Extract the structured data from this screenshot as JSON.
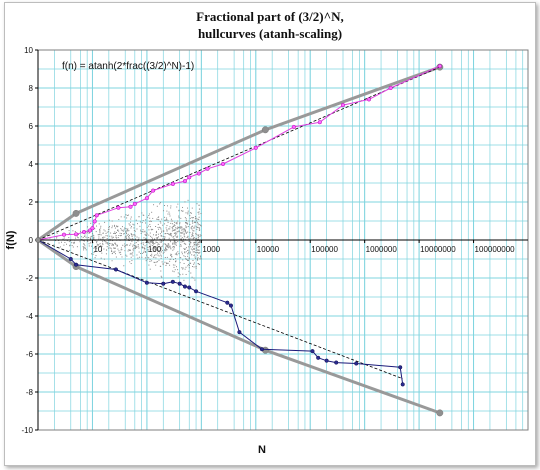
{
  "chart_data": {
    "type": "line",
    "title_line1": "Fractional part of (3/2)^N,",
    "title_line2": "hullcurves (atanh-scaling)",
    "xlabel": "N",
    "ylabel": "f(N)",
    "annotation": "f(n) = atanh(2*frac((3/2)^N)-1)",
    "x_scale": "log",
    "xlim": [
      1,
      1000000000
    ],
    "ylim": [
      -10,
      10
    ],
    "y_ticks": [
      -10,
      -8,
      -6,
      -4,
      -2,
      0,
      2,
      4,
      6,
      8,
      10
    ],
    "x_tick_labels": [
      "10",
      "100",
      "1000",
      "10000",
      "100000",
      "1000000",
      "10000000",
      "100000000"
    ],
    "grid": true,
    "colors": {
      "grid": "#7fd4df",
      "upper_record": "#e040e0",
      "lower_record": "#1a1a7a",
      "hull": "#999999",
      "dots": "#8c8c8c",
      "dashed": "#000000"
    },
    "series": [
      {
        "role": "upper-records",
        "x": [
          1,
          3,
          5,
          7,
          9,
          10,
          11,
          12,
          30,
          50,
          60,
          100,
          130,
          300,
          500,
          600,
          900,
          1300,
          2500,
          10000,
          50000,
          150000,
          400000,
          1200000,
          3000000,
          24000000
        ],
        "y": [
          0.0,
          0.28,
          0.3,
          0.42,
          0.5,
          0.62,
          0.98,
          1.3,
          1.7,
          1.75,
          1.9,
          2.2,
          2.6,
          2.95,
          3.1,
          3.3,
          3.5,
          3.75,
          4.0,
          4.85,
          5.95,
          6.2,
          7.1,
          7.4,
          8.0,
          9.15
        ]
      },
      {
        "role": "lower-records",
        "x": [
          1,
          4,
          5,
          27,
          100,
          200,
          300,
          400,
          500,
          600,
          800,
          3000,
          3500,
          5000,
          13000,
          110000,
          140000,
          200000,
          300000,
          700000,
          4500000,
          5000000
        ],
        "y": [
          0.0,
          -1.0,
          -1.3,
          -1.55,
          -2.25,
          -2.3,
          -2.2,
          -2.3,
          -2.45,
          -2.5,
          -2.7,
          -3.3,
          -3.45,
          -4.85,
          -5.75,
          -5.85,
          -6.2,
          -6.35,
          -6.45,
          -6.5,
          -6.7,
          -7.6
        ]
      },
      {
        "role": "upper-hull",
        "x": [
          1,
          5,
          15000,
          24000000
        ],
        "y": [
          0,
          1.4,
          5.8,
          9.1
        ]
      },
      {
        "role": "lower-hull",
        "x": [
          1,
          5,
          15000,
          24000000
        ],
        "y": [
          0,
          -1.4,
          -5.8,
          -9.1
        ]
      },
      {
        "role": "upper-trend",
        "x": [
          1,
          24000000
        ],
        "y": [
          0,
          9.1
        ]
      },
      {
        "role": "lower-trend",
        "x": [
          1,
          5000000
        ],
        "y": [
          0,
          -7.3
        ]
      }
    ],
    "scatter_range": {
      "x": [
        1,
        1000
      ],
      "y": [
        -3,
        3
      ]
    }
  }
}
